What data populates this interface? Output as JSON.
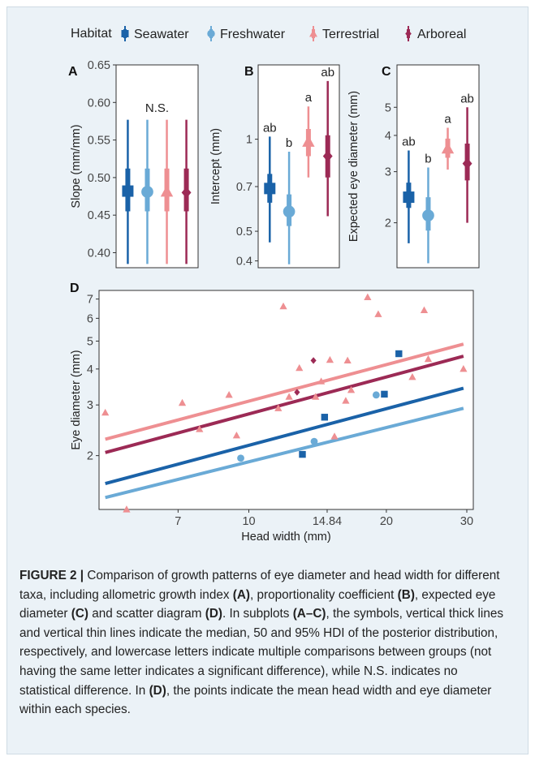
{
  "legend": {
    "title": "Habitat",
    "items": [
      {
        "name": "Seawater",
        "color": "#1a62a8",
        "marker": "square"
      },
      {
        "name": "Freshwater",
        "color": "#6aaad6",
        "marker": "circle"
      },
      {
        "name": "Terrestrial",
        "color": "#ee8f92",
        "marker": "triangle"
      },
      {
        "name": "Arboreal",
        "color": "#9c2a55",
        "marker": "diamond"
      }
    ]
  },
  "caption": {
    "prefix": "FIGURE 2 |",
    "segments": [
      {
        "text": " Comparison of growth patterns of eye diameter and head width for different taxa, including allometric growth index ",
        "bold": false
      },
      {
        "text": "(A)",
        "bold": true
      },
      {
        "text": ", proportionality coefficient ",
        "bold": false
      },
      {
        "text": "(B)",
        "bold": true
      },
      {
        "text": ", expected eye diameter ",
        "bold": false
      },
      {
        "text": "(C)",
        "bold": true
      },
      {
        "text": " and scatter diagram ",
        "bold": false
      },
      {
        "text": "(D)",
        "bold": true
      },
      {
        "text": ". In subplots ",
        "bold": false
      },
      {
        "text": "(A–C)",
        "bold": true
      },
      {
        "text": ", the symbols, vertical thick lines and vertical thin lines indicate the median, 50 and 95% HDI of the posterior distribution, respectively, and lowercase letters indicate multiple comparisons between groups (not having the same letter indicates a significant difference), while N.S. indicates no statistical difference. In ",
        "bold": false
      },
      {
        "text": "(D)",
        "bold": true
      },
      {
        "text": ", the points indicate the mean head width and eye diameter within each species.",
        "bold": false
      }
    ]
  },
  "chart_data": [
    {
      "panel": "A",
      "type": "interval",
      "ylabel": "Slope (mm/mm)",
      "ylim": [
        0.38,
        0.65
      ],
      "yscale": "linear",
      "yticks": [
        0.4,
        0.45,
        0.5,
        0.55,
        0.6,
        0.65
      ],
      "yticklabels": [
        "0.40",
        "0.45",
        "0.50",
        "0.55",
        "0.60",
        "0.65"
      ],
      "annotation": "N.S.",
      "groups": [
        {
          "habitat": "Seawater",
          "median": 0.482,
          "hdi50": [
            0.455,
            0.512
          ],
          "hdi95": [
            0.385,
            0.577
          ],
          "letter": ""
        },
        {
          "habitat": "Freshwater",
          "median": 0.481,
          "hdi50": [
            0.455,
            0.512
          ],
          "hdi95": [
            0.385,
            0.577
          ],
          "letter": ""
        },
        {
          "habitat": "Terrestrial",
          "median": 0.481,
          "hdi50": [
            0.455,
            0.512
          ],
          "hdi95": [
            0.385,
            0.577
          ],
          "letter": ""
        },
        {
          "habitat": "Arboreal",
          "median": 0.48,
          "hdi50": [
            0.455,
            0.512
          ],
          "hdi95": [
            0.385,
            0.577
          ],
          "letter": ""
        }
      ]
    },
    {
      "panel": "B",
      "type": "interval",
      "ylabel": "Intercept (mm)",
      "ylim": [
        0.38,
        1.75
      ],
      "yscale": "log",
      "yticks": [
        0.4,
        0.5,
        0.7,
        1
      ],
      "yticklabels": [
        "0.4",
        "0.5",
        "0.7",
        "1"
      ],
      "groups": [
        {
          "habitat": "Seawater",
          "median": 0.69,
          "hdi50": [
            0.62,
            0.77
          ],
          "hdi95": [
            0.46,
            1.02
          ],
          "letter": "ab"
        },
        {
          "habitat": "Freshwater",
          "median": 0.58,
          "hdi50": [
            0.52,
            0.66
          ],
          "hdi95": [
            0.39,
            0.91
          ],
          "letter": "b"
        },
        {
          "habitat": "Terrestrial",
          "median": 0.98,
          "hdi50": [
            0.88,
            1.08
          ],
          "hdi95": [
            0.75,
            1.28
          ],
          "letter": "a"
        },
        {
          "habitat": "Arboreal",
          "median": 0.88,
          "hdi50": [
            0.75,
            1.03
          ],
          "hdi95": [
            0.56,
            1.55
          ],
          "letter": "ab"
        }
      ]
    },
    {
      "panel": "C",
      "type": "interval",
      "ylabel": "Expected eye diameter (mm)",
      "ylim": [
        1.4,
        7.0
      ],
      "yscale": "log",
      "yticks": [
        2,
        3,
        4,
        5
      ],
      "yticklabels": [
        "2",
        "3",
        "4",
        "5"
      ],
      "groups": [
        {
          "habitat": "Seawater",
          "median": 2.45,
          "hdi50": [
            2.25,
            2.75
          ],
          "hdi95": [
            1.7,
            3.55
          ],
          "letter": "ab"
        },
        {
          "habitat": "Freshwater",
          "median": 2.12,
          "hdi50": [
            1.88,
            2.45
          ],
          "hdi95": [
            1.45,
            3.1
          ],
          "letter": "b"
        },
        {
          "habitat": "Terrestrial",
          "median": 3.6,
          "hdi50": [
            3.35,
            3.9
          ],
          "hdi95": [
            3.05,
            4.25
          ],
          "letter": "a"
        },
        {
          "habitat": "Arboreal",
          "median": 3.2,
          "hdi50": [
            2.8,
            3.75
          ],
          "hdi95": [
            2.0,
            5.0
          ],
          "letter": "ab"
        }
      ]
    },
    {
      "panel": "D",
      "type": "scatter",
      "xlabel": "Head width (mm)",
      "ylabel": "Eye diameter (mm)",
      "xscale": "log",
      "yscale": "log",
      "xlim": [
        4.7,
        31
      ],
      "ylim": [
        1.3,
        7.5
      ],
      "xticks": [
        7,
        10,
        14.84,
        20,
        30
      ],
      "xticklabels": [
        "7",
        "10",
        "14.84",
        "20",
        "30"
      ],
      "yticks": [
        2,
        3,
        4,
        5,
        6,
        7
      ],
      "yticklabels": [
        "2",
        "3",
        "4",
        "5",
        "6",
        "7"
      ],
      "series": [
        {
          "name": "Seawater",
          "points": [
            [
              13.1,
              2.02
            ],
            [
              14.65,
              2.72
            ],
            [
              19.8,
              3.27
            ],
            [
              21.3,
              4.52
            ]
          ],
          "fit": {
            "x": [
              4.85,
              29.5
            ],
            "y": [
              1.6,
              3.43
            ]
          }
        },
        {
          "name": "Freshwater",
          "points": [
            [
              9.6,
              1.96
            ],
            [
              13.9,
              2.24
            ],
            [
              19.0,
              3.25
            ]
          ],
          "fit": {
            "x": [
              4.85,
              29.5
            ],
            "y": [
              1.43,
              2.92
            ]
          }
        },
        {
          "name": "Terrestrial",
          "points": [
            [
              4.85,
              2.82
            ],
            [
              5.4,
              1.3
            ],
            [
              7.15,
              3.05
            ],
            [
              7.8,
              2.47
            ],
            [
              9.05,
              3.25
            ],
            [
              9.4,
              2.35
            ],
            [
              11.6,
              2.92
            ],
            [
              11.9,
              6.6
            ],
            [
              12.25,
              3.2
            ],
            [
              12.9,
              4.03
            ],
            [
              14.0,
              3.2
            ],
            [
              14.4,
              3.62
            ],
            [
              15.05,
              4.3
            ],
            [
              15.4,
              2.33
            ],
            [
              16.3,
              3.1
            ],
            [
              16.45,
              4.28
            ],
            [
              16.75,
              3.38
            ],
            [
              18.2,
              7.1
            ],
            [
              19.2,
              6.2
            ],
            [
              22.8,
              3.75
            ],
            [
              24.2,
              6.4
            ],
            [
              24.7,
              4.33
            ],
            [
              29.5,
              4.0
            ]
          ],
          "fit": {
            "x": [
              4.85,
              29.5
            ],
            "y": [
              2.28,
              4.88
            ]
          }
        },
        {
          "name": "Arboreal",
          "points": [
            [
              12.75,
              3.32
            ],
            [
              13.85,
              4.28
            ]
          ],
          "fit": {
            "x": [
              4.85,
              29.5
            ],
            "y": [
              2.05,
              4.43
            ]
          }
        }
      ]
    }
  ]
}
